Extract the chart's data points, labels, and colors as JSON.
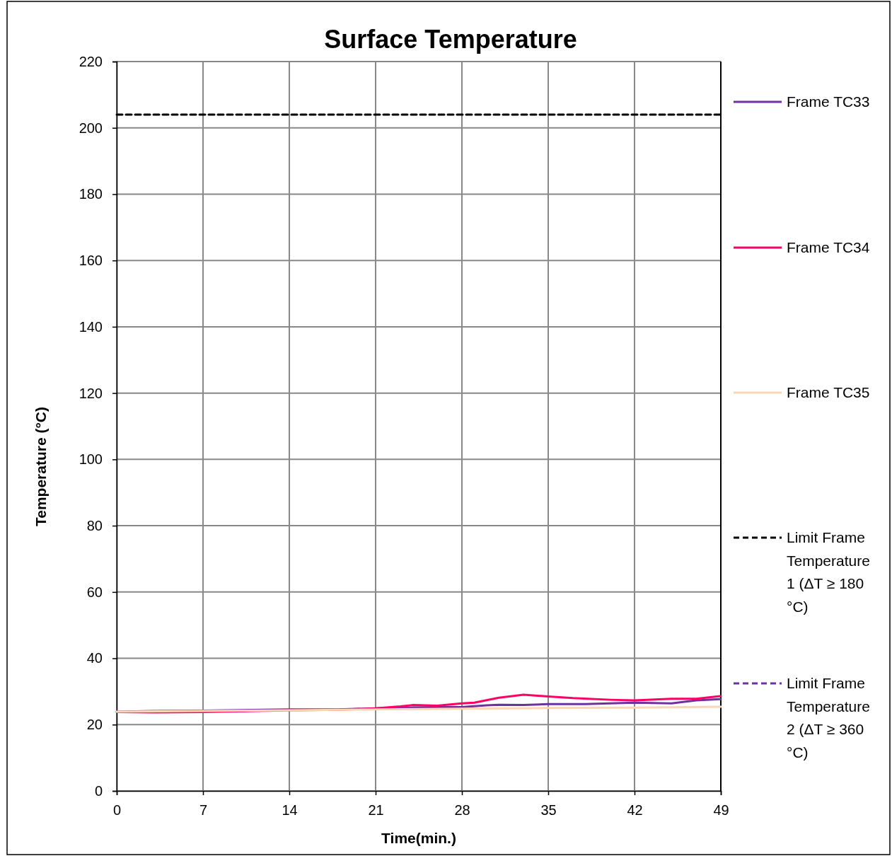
{
  "chart_data": {
    "type": "line",
    "title": "Surface Temperature",
    "xlabel": "Time(min.)",
    "ylabel": "Temperature (°C)",
    "xlim": [
      0,
      49
    ],
    "xticks": [
      0,
      7,
      14,
      21,
      28,
      35,
      42,
      49
    ],
    "ylim": [
      0,
      220
    ],
    "yticks": [
      0,
      20,
      40,
      60,
      80,
      100,
      120,
      140,
      160,
      180,
      200,
      220
    ],
    "grid": true,
    "legend": "right",
    "line_style": "solid",
    "marker": "none",
    "series": [
      {
        "name": "Frame TC33",
        "color": "#7030a0",
        "x": [
          0,
          3,
          7,
          10,
          14,
          18,
          21,
          24,
          26,
          28,
          30,
          31,
          33,
          35,
          38,
          42,
          45,
          47,
          49
        ],
        "values": [
          23.9,
          24.1,
          24.2,
          24.4,
          24.6,
          24.6,
          24.9,
          25.2,
          25.3,
          25.3,
          25.8,
          26.0,
          25.9,
          26.2,
          26.2,
          26.6,
          26.4,
          27.3,
          27.7
        ]
      },
      {
        "name": "Frame TC34",
        "color": "#ff0066",
        "x": [
          0,
          3,
          7,
          10,
          14,
          18,
          21,
          23,
          24,
          26,
          28,
          29,
          31,
          33,
          35,
          37,
          40,
          42,
          45,
          47,
          49
        ],
        "values": [
          23.8,
          23.7,
          23.8,
          24.0,
          24.3,
          24.5,
          24.9,
          25.5,
          25.9,
          25.7,
          26.4,
          26.6,
          28.1,
          29.0,
          28.5,
          28.0,
          27.5,
          27.3,
          27.8,
          27.8,
          28.6
        ]
      },
      {
        "name": "Frame TC35",
        "color": "#fcd5b5",
        "x": [
          0,
          7,
          14,
          21,
          28,
          35,
          42,
          49
        ],
        "values": [
          23.9,
          24.1,
          24.3,
          24.6,
          24.8,
          25.0,
          25.1,
          25.4
        ]
      },
      {
        "name": "Limit Frame Temperature 1 (ΔT ≥ 180 °C)",
        "color": "#000000",
        "line_style": "dashed",
        "x": [
          0,
          49
        ],
        "values": [
          204,
          204
        ]
      },
      {
        "name": "Limit Frame Temperature 2 (ΔT ≥ 360 °C)",
        "color": "#7030a0",
        "line_style": "dashed"
      }
    ]
  }
}
